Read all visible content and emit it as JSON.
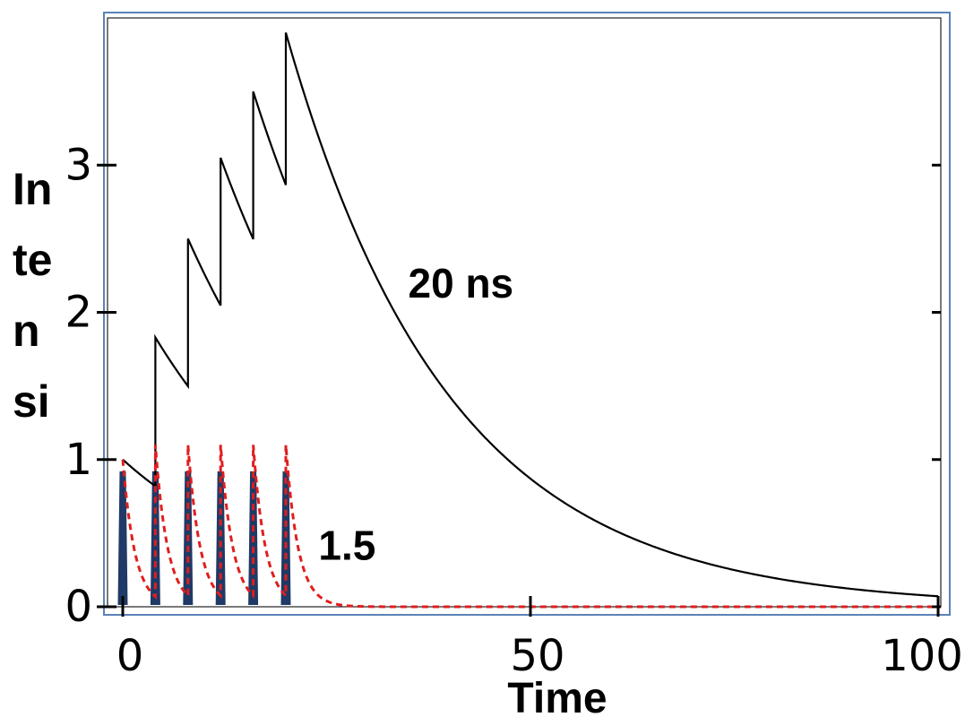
{
  "chart_data": {
    "type": "line",
    "xlabel": "Time",
    "ylabel": "Intensi",
    "ylabel_lines": [
      "In",
      "te",
      "n",
      "si"
    ],
    "xlim": [
      -2,
      100
    ],
    "ylim": [
      0,
      4.0
    ],
    "xticks": [
      0,
      50,
      100
    ],
    "xtick_labels": [
      "0",
      "50",
      "100"
    ],
    "yticks": [
      0,
      1,
      2,
      3
    ],
    "ytick_labels": [
      "0",
      "1",
      "2",
      "3"
    ],
    "grid": false,
    "pulse_times": [
      0,
      4,
      8,
      12,
      16,
      20
    ],
    "pulse_height": 0.92,
    "series": [
      {
        "lifetime": 20,
        "color": "#000000",
        "style": "solid",
        "peaks": [
          [
            0,
            1.0
          ],
          [
            4,
            1.83
          ],
          [
            8,
            2.5
          ],
          [
            12,
            3.05
          ],
          [
            16,
            3.5
          ],
          [
            20,
            3.9
          ]
        ],
        "end": [
          100,
          0.07
        ]
      },
      {
        "lifetime": 1.5,
        "color": "#e01e1e",
        "style": "dashed",
        "peaks": [
          [
            0,
            1.0
          ],
          [
            4,
            1.1
          ],
          [
            8,
            1.1
          ],
          [
            12,
            1.1
          ],
          [
            16,
            1.1
          ],
          [
            20,
            1.1
          ]
        ],
        "end": [
          100,
          0.0
        ]
      }
    ],
    "annotations": [
      {
        "text": "20 ns",
        "x": 35,
        "y": 2.1
      },
      {
        "text": "1.5",
        "x": 24,
        "y": 0.32
      }
    ]
  }
}
